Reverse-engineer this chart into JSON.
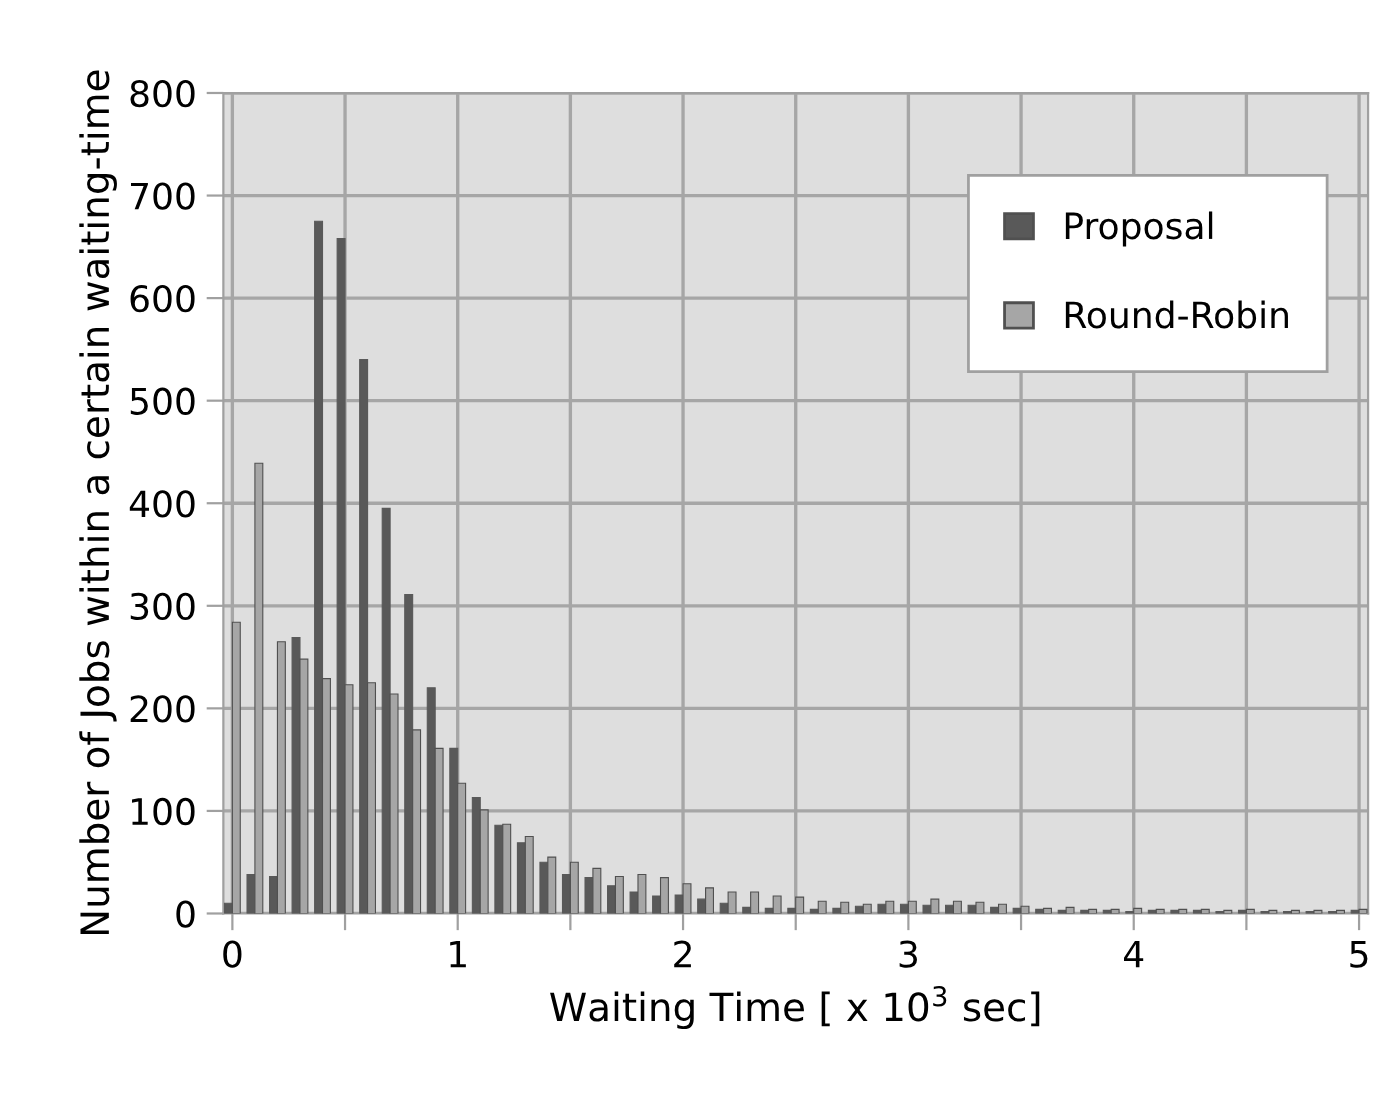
{
  "chart_data": {
    "type": "bar",
    "xlabel": "Waiting Time [ x 10$^{3}$ sec]",
    "ylabel": "Number of Jobs within a certain waiting-time",
    "x": [
      0,
      0.1,
      0.2,
      0.3,
      0.4,
      0.5,
      0.6,
      0.7,
      0.8,
      0.9,
      1,
      1.1,
      1.2,
      1.3,
      1.4,
      1.5,
      1.6,
      1.7,
      1.8,
      1.9,
      2,
      2.1,
      2.2,
      2.3,
      2.4,
      2.5,
      2.6,
      2.7,
      2.8,
      2.9,
      3,
      3.1,
      3.2,
      3.3,
      3.4,
      3.5,
      3.6,
      3.7,
      3.8,
      3.9,
      4,
      4.1,
      4.2,
      4.3,
      4.4,
      4.5,
      4.6,
      4.7,
      4.8,
      4.9,
      5
    ],
    "series": [
      {
        "name": "Proposal",
        "color": "#595959",
        "values": [
          10,
          38,
          36,
          269,
          675,
          658,
          540,
          395,
          311,
          220,
          161,
          113,
          86,
          69,
          50,
          38,
          35,
          27,
          21,
          17,
          18,
          14,
          10,
          6,
          5,
          5,
          4,
          5,
          7,
          9,
          9,
          8,
          8,
          8,
          6,
          5,
          4,
          3,
          3,
          3,
          2,
          3,
          3,
          3,
          2,
          3,
          2,
          2,
          2,
          2,
          3
        ]
      },
      {
        "name": "Round-Robin",
        "color": "#a6a6a6",
        "values": [
          284,
          439,
          265,
          248,
          229,
          223,
          225,
          214,
          179,
          161,
          127,
          101,
          87,
          75,
          55,
          50,
          44,
          36,
          38,
          35,
          29,
          25,
          21,
          21,
          17,
          16,
          12,
          11,
          9,
          12,
          12,
          14,
          12,
          11,
          9,
          7,
          5,
          6,
          4,
          4,
          5,
          4,
          4,
          4,
          3,
          4,
          3,
          3,
          3,
          3,
          4
        ]
      }
    ],
    "xlim": [
      -0.04,
      5.04
    ],
    "xticks": [
      0,
      {
        "value": 0.5,
        "label": null
      },
      1,
      {
        "value": 1.5,
        "label": null
      },
      2,
      {
        "value": 2.5,
        "label": null
      },
      3,
      {
        "value": 3.5,
        "label": null
      },
      4,
      {
        "value": 4.5,
        "label": null
      },
      5
    ],
    "ylim": [
      0,
      800
    ],
    "yticks": [
      0,
      100,
      200,
      300,
      400,
      500,
      600,
      700,
      800
    ],
    "grid": true,
    "legend": "right"
  }
}
